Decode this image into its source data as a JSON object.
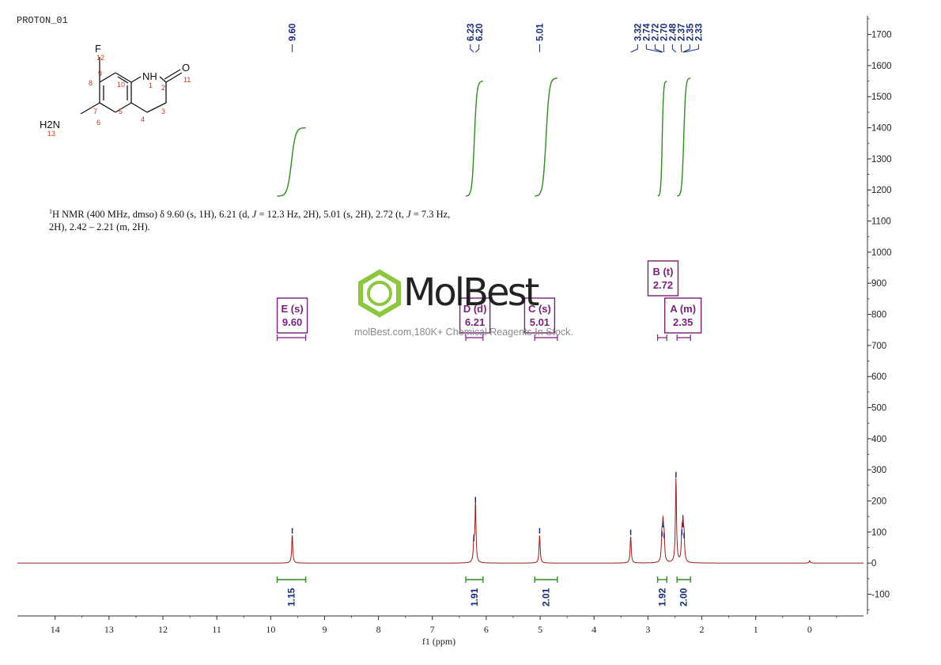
{
  "experiment_id": "PROTON_01",
  "nmr_summary": {
    "superscript": "1",
    "text_before_j1": "H NMR (400 MHz, dmso) δ 9.60 (s, 1H), 6.21 (d, ",
    "j": "J",
    "text_between_j": " = 12.3 Hz, 2H), 5.01 (s, 2H), 2.72 (t, ",
    "text_after_j2": " = 7.3 Hz,",
    "line2": "2H), 2.42 – 2.21 (m, 2H)."
  },
  "watermark": {
    "brand": "MolBest",
    "tagline": "molBest.com,180K+ Chemical Reagents In Stock.",
    "logo_color": "#8dc63f"
  },
  "molecule": {
    "atoms": [
      {
        "label": "F",
        "num": "12"
      },
      {
        "label": "NH",
        "num": "1"
      },
      {
        "label": "O",
        "num": "11"
      },
      {
        "label": "H2N",
        "num": "13"
      }
    ],
    "ring_numbers": [
      "8",
      "9",
      "10",
      "7",
      "6",
      "5",
      "2",
      "3",
      "4"
    ]
  },
  "colors": {
    "spectrum_line": "#9b1b1b",
    "integral_curve": "#2e8b1e",
    "integral_bar": "#2e8b1e",
    "peak_label": "#1a2a7a",
    "multiplet_box": "#7a1f7a",
    "axis": "#333333",
    "atom_number": "#c0392b"
  },
  "chart_data": {
    "type": "line",
    "title": "",
    "xlabel": "f1 (ppm)",
    "ylabel": "",
    "x_reversed": true,
    "xlim": [
      14.7,
      -1.0
    ],
    "ylim": [
      -170,
      1760
    ],
    "x_ticks": [
      "14",
      "13",
      "12",
      "11",
      "10",
      "9",
      "8",
      "7",
      "6",
      "5",
      "4",
      "3",
      "2",
      "1",
      "0"
    ],
    "y_ticks": [
      "1700",
      "1600",
      "1500",
      "1400",
      "1300",
      "1200",
      "1100",
      "1000",
      "900",
      "800",
      "700",
      "600",
      "500",
      "400",
      "300",
      "200",
      "100",
      "0",
      "-100"
    ],
    "peaks": [
      {
        "ppm": 9.6,
        "height": 90
      },
      {
        "ppm": 6.23,
        "height": 65
      },
      {
        "ppm": 6.2,
        "height": 190
      },
      {
        "ppm": 5.01,
        "height": 90
      },
      {
        "ppm": 3.32,
        "height": 85
      },
      {
        "ppm": 2.74,
        "height": 80
      },
      {
        "ppm": 2.72,
        "height": 110
      },
      {
        "ppm": 2.7,
        "height": 75
      },
      {
        "ppm": 2.48,
        "height": 270
      },
      {
        "ppm": 2.37,
        "height": 85
      },
      {
        "ppm": 2.35,
        "height": 110
      },
      {
        "ppm": 2.33,
        "height": 75
      },
      {
        "ppm": 0.0,
        "height": 8
      }
    ],
    "peak_labels": [
      {
        "ppm": 9.6,
        "text": "9.60"
      },
      {
        "ppm": 6.23,
        "text": "6.23"
      },
      {
        "ppm": 6.2,
        "text": "6.20"
      },
      {
        "ppm": 5.01,
        "text": "5.01"
      },
      {
        "ppm": 3.32,
        "text": "3.32"
      },
      {
        "ppm": 2.74,
        "text": "2.74"
      },
      {
        "ppm": 2.72,
        "text": "2.72"
      },
      {
        "ppm": 2.7,
        "text": "2.70"
      },
      {
        "ppm": 2.48,
        "text": "2.48"
      },
      {
        "ppm": 2.37,
        "text": "2.37"
      },
      {
        "ppm": 2.35,
        "text": "2.35"
      },
      {
        "ppm": 2.33,
        "text": "2.33"
      }
    ],
    "integrals": [
      {
        "from": 9.88,
        "to": 9.35,
        "value": "1.15",
        "curve_y0": 1180,
        "curve_y1": 1400
      },
      {
        "from": 6.38,
        "to": 6.06,
        "value": "1.91",
        "curve_y0": 1180,
        "curve_y1": 1550
      },
      {
        "from": 5.1,
        "to": 4.68,
        "value": "2.01",
        "curve_y0": 1180,
        "curve_y1": 1560
      },
      {
        "from": 2.82,
        "to": 2.65,
        "value": "1.92",
        "curve_y0": 1180,
        "curve_y1": 1550
      },
      {
        "from": 2.46,
        "to": 2.21,
        "value": "2.00",
        "curve_y0": 1180,
        "curve_y1": 1560
      }
    ],
    "multiplets": [
      {
        "label": "E (s)",
        "shift": "9.60",
        "from": 9.88,
        "to": 9.35
      },
      {
        "label": "D (d)",
        "shift": "6.21",
        "from": 6.38,
        "to": 6.06
      },
      {
        "label": "C (s)",
        "shift": "5.01",
        "from": 5.1,
        "to": 4.68
      },
      {
        "label": "B (t)",
        "shift": "2.72",
        "from": 2.82,
        "to": 2.65
      },
      {
        "label": "A (m)",
        "shift": "2.35",
        "from": 2.46,
        "to": 2.21
      }
    ]
  }
}
